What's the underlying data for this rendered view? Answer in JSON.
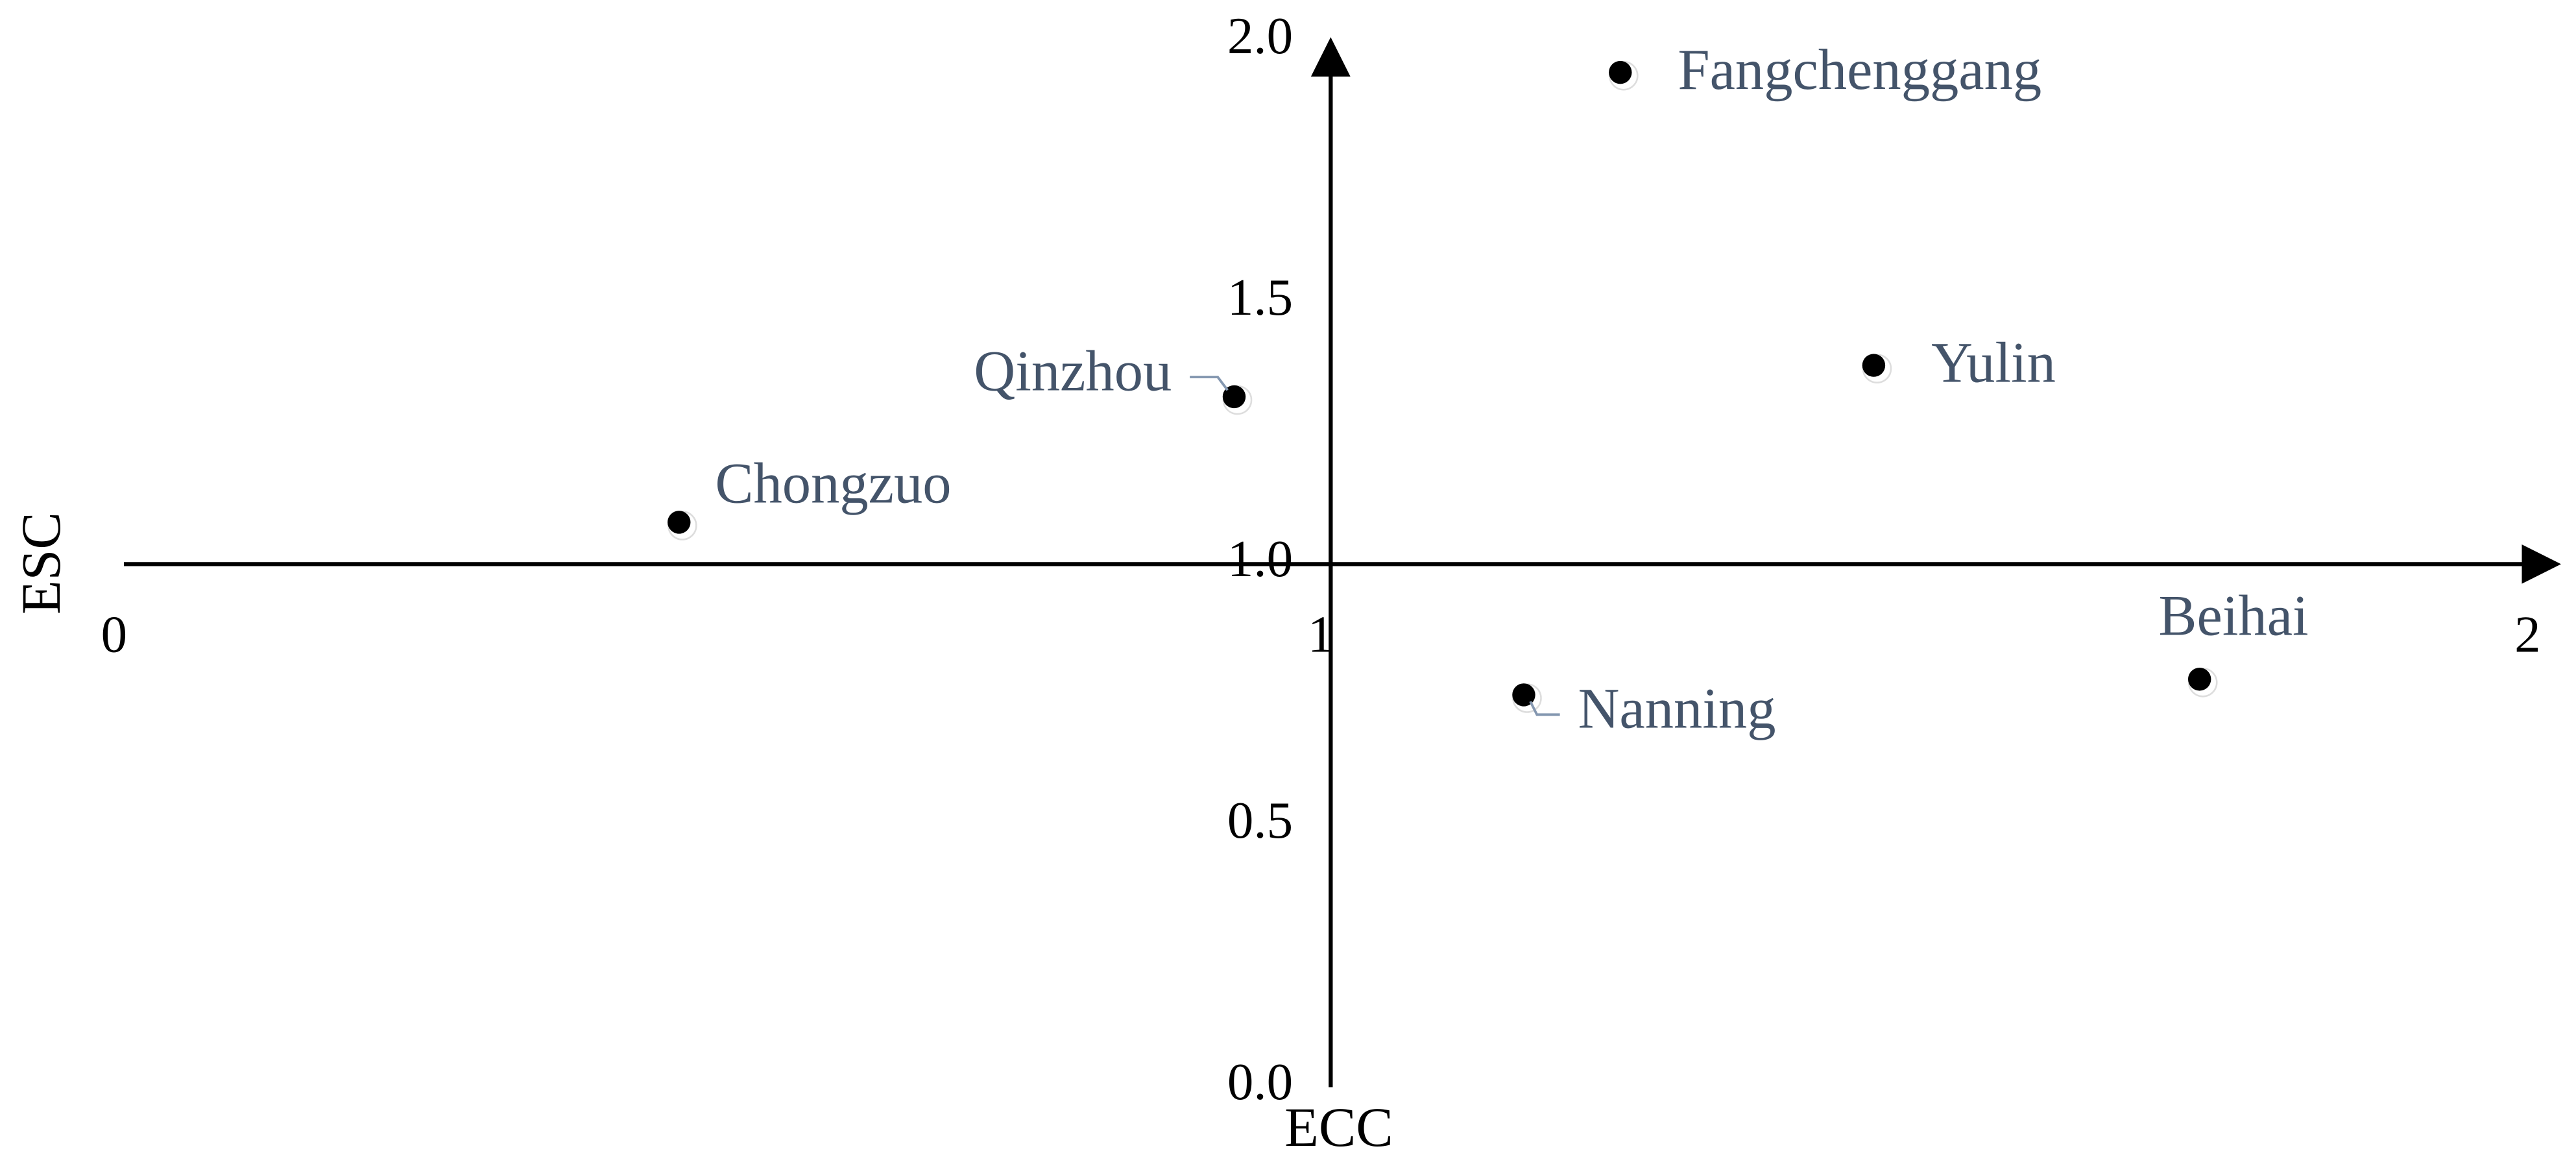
{
  "chart_data": {
    "type": "scatter",
    "x_label": "ECC",
    "y_label": "ESC",
    "labels": [
      "Fangchenggang",
      "Yulin",
      "Qinzhou",
      "Chongzuo",
      "Nanning",
      "Beihai"
    ],
    "x": [
      1.24,
      1.45,
      0.92,
      0.46,
      1.16,
      1.72
    ],
    "values": [
      1.94,
      1.38,
      1.32,
      1.08,
      0.75,
      0.78
    ],
    "color": "#000000",
    "label_color": "#44546a",
    "xlim": [
      0,
      2
    ],
    "xticks": [
      0,
      1,
      2
    ],
    "ylim": [
      0,
      2
    ],
    "yticks": [
      {
        "value": 0,
        "label": "0.0"
      },
      {
        "value": 0.5,
        "label": "0.5"
      },
      {
        "value": 1,
        "label": "1.0"
      },
      {
        "value": 1.5,
        "label": "1.5"
      },
      {
        "value": 2,
        "label": "2.0"
      }
    ]
  }
}
